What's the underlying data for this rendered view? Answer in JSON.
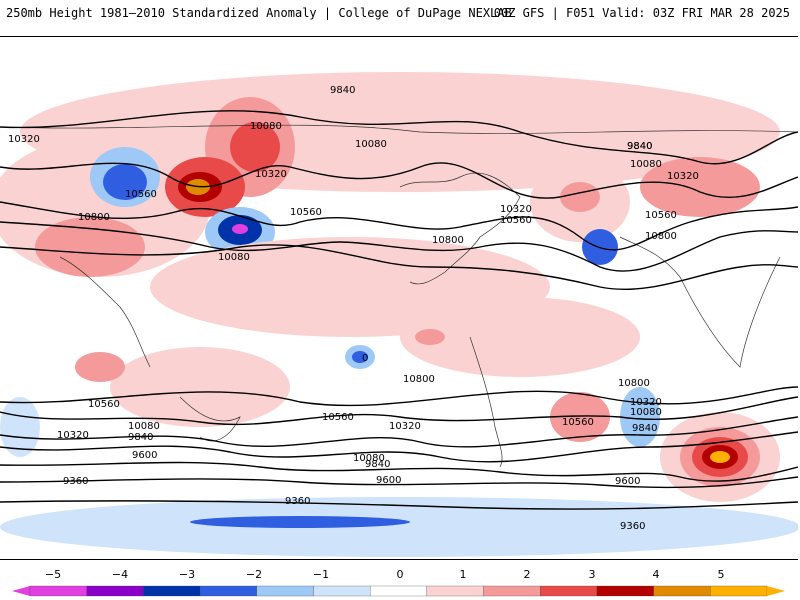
{
  "header": {
    "title": "250mb Height 1981–2010 Standardized Anomaly | College of DuPage NEXLAB",
    "model_info": "00Z GFS | F051 Valid: 03Z FRI MAR 28 2025"
  },
  "contour_labels": [
    "9840",
    "10080",
    "10320",
    "10560",
    "10800",
    "10080",
    "10320",
    "9840",
    "10560",
    "10800",
    "10080",
    "9840",
    "10080",
    "10320",
    "10560",
    "10800",
    "10800",
    "10560",
    "10320",
    "10080",
    "9840",
    "9600",
    "9360",
    "10560",
    "10320",
    "10080",
    "9600",
    "9360",
    "10320",
    "10080",
    "9840",
    "10560",
    "10800",
    "9600",
    "9360",
    "0",
    "9840",
    "10320",
    "10560"
  ],
  "colorbar": {
    "labels": [
      "−5",
      "−4",
      "−3",
      "−2",
      "−1",
      "0",
      "1",
      "2",
      "3",
      "4",
      "5"
    ],
    "colors": [
      "#e040e0",
      "#8a00c8",
      "#0033aa",
      "#2f5fe0",
      "#9ec8f5",
      "#cfe4fa",
      "#ffffff",
      "#fbd2d2",
      "#f59a9a",
      "#e84a4a",
      "#b30000",
      "#e08a00",
      "#ffb000"
    ]
  }
}
